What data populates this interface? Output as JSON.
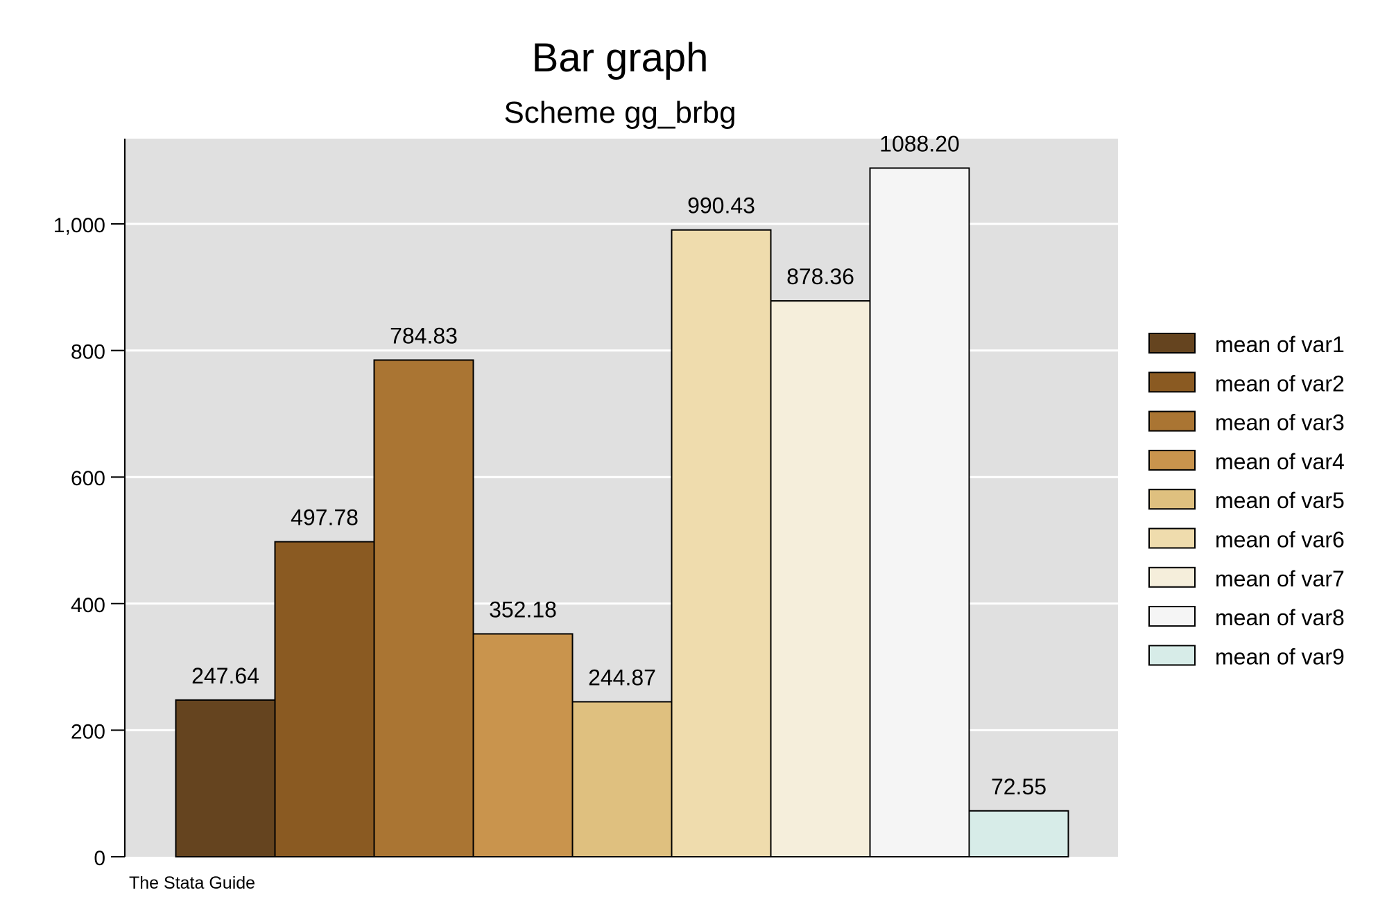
{
  "chart_data": {
    "type": "bar",
    "title": "Bar graph",
    "subtitle": "Scheme gg_brbg",
    "note": "The Stata Guide",
    "xlabel": "",
    "ylabel": "",
    "ylim": [
      0,
      1150
    ],
    "yticks": [
      0,
      200,
      400,
      600,
      800,
      1000
    ],
    "ytick_labels": [
      "0",
      "200",
      "400",
      "600",
      "800",
      "1,000"
    ],
    "grid": true,
    "legend_position": "right",
    "series": [
      {
        "name": "mean of var1",
        "value": 247.64,
        "label": "247.64",
        "color": "#65441f"
      },
      {
        "name": "mean of var2",
        "value": 497.78,
        "label": "497.78",
        "color": "#8a5a22"
      },
      {
        "name": "mean of var3",
        "value": 784.83,
        "label": "784.83",
        "color": "#aa7533"
      },
      {
        "name": "mean of var4",
        "value": 352.18,
        "label": "352.18",
        "color": "#c9944d"
      },
      {
        "name": "mean of var5",
        "value": 244.87,
        "label": "244.87",
        "color": "#dfc07f"
      },
      {
        "name": "mean of var6",
        "value": 990.43,
        "label": "990.43",
        "color": "#efdcad"
      },
      {
        "name": "mean of var7",
        "value": 878.36,
        "label": "878.36",
        "color": "#f5eedb"
      },
      {
        "name": "mean of var8",
        "value": 1088.2,
        "label": "1088.20",
        "color": "#f5f5f5"
      },
      {
        "name": "mean of var9",
        "value": 72.55,
        "label": "72.55",
        "color": "#d7ece8"
      }
    ],
    "colors": {
      "plot_background": "#e0e0e0",
      "gridline": "#ffffff",
      "bar_outline": "#000000"
    }
  }
}
